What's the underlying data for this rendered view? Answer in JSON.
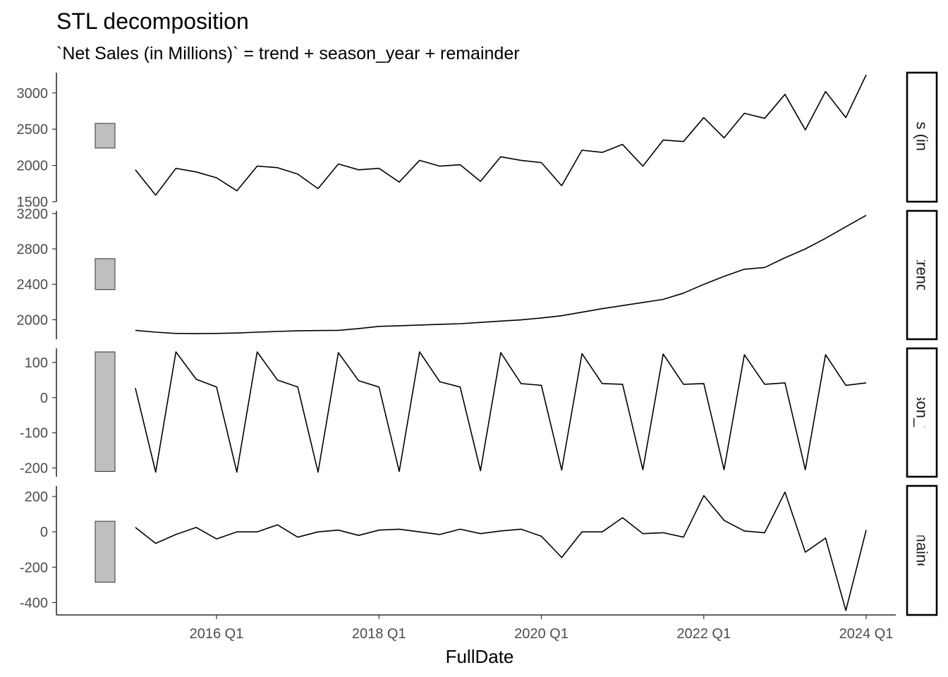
{
  "chart_data": {
    "type": "line",
    "title": "STL decomposition",
    "subtitle": "`Net Sales (in Millions)` = trend + season_year + remainder",
    "xlabel": "FullDate",
    "x_ticks": [
      "2016 Q1",
      "2018 Q1",
      "2020 Q1",
      "2022 Q1",
      "2024 Q1"
    ],
    "x": [
      "2015 Q1",
      "2015 Q2",
      "2015 Q3",
      "2015 Q4",
      "2016 Q1",
      "2016 Q2",
      "2016 Q3",
      "2016 Q4",
      "2017 Q1",
      "2017 Q2",
      "2017 Q3",
      "2017 Q4",
      "2018 Q1",
      "2018 Q2",
      "2018 Q3",
      "2018 Q4",
      "2019 Q1",
      "2019 Q2",
      "2019 Q3",
      "2019 Q4",
      "2020 Q1",
      "2020 Q2",
      "2020 Q3",
      "2020 Q4",
      "2021 Q1",
      "2021 Q2",
      "2021 Q3",
      "2021 Q4",
      "2022 Q1",
      "2022 Q2",
      "2022 Q3",
      "2022 Q4",
      "2023 Q1",
      "2023 Q2",
      "2023 Q3",
      "2023 Q4",
      "2024 Q1"
    ],
    "facets": [
      {
        "name": "Net Sales (in Millions)",
        "strip_label": "Net Sales (in Millions)",
        "ylim": [
          1500,
          3280
        ],
        "y_ticks": [
          1500,
          2000,
          2500,
          3000
        ],
        "scale_bar": [
          2240,
          2580
        ],
        "values": [
          1940,
          1590,
          1960,
          1910,
          1830,
          1650,
          1990,
          1970,
          1880,
          1680,
          2020,
          1940,
          1960,
          1770,
          2070,
          1990,
          2010,
          1780,
          2120,
          2070,
          2040,
          1720,
          2210,
          2180,
          2290,
          1990,
          2350,
          2330,
          2660,
          2380,
          2720,
          2650,
          2980,
          2490,
          3020,
          2660,
          3250
        ]
      },
      {
        "name": "trend",
        "strip_label": "trend",
        "ylim": [
          1780,
          3230
        ],
        "y_ticks": [
          2000,
          2400,
          2800,
          3200
        ],
        "scale_bar": [
          2340,
          2690
        ],
        "values": [
          1880,
          1860,
          1845,
          1843,
          1845,
          1850,
          1860,
          1868,
          1875,
          1878,
          1880,
          1900,
          1925,
          1932,
          1940,
          1948,
          1955,
          1970,
          1985,
          1998,
          2020,
          2045,
          2085,
          2125,
          2160,
          2195,
          2230,
          2300,
          2400,
          2490,
          2570,
          2590,
          2700,
          2800,
          2920,
          3050,
          3180
        ]
      },
      {
        "name": "season_year",
        "strip_label": "season_year",
        "ylim": [
          -225,
          140
        ],
        "y_ticks": [
          -200,
          -100,
          0,
          100
        ],
        "scale_bar": [
          -210,
          130
        ],
        "values": [
          27,
          -212,
          130,
          52,
          30,
          -212,
          130,
          50,
          30,
          -212,
          128,
          48,
          30,
          -210,
          130,
          45,
          30,
          -208,
          128,
          40,
          35,
          -206,
          125,
          40,
          38,
          -205,
          124,
          38,
          40,
          -205,
          122,
          38,
          42,
          -205,
          122,
          35,
          42
        ]
      },
      {
        "name": "remainder",
        "strip_label": "remainder",
        "ylim": [
          -470,
          260
        ],
        "y_ticks": [
          -400,
          -200,
          0,
          200
        ],
        "scale_bar": [
          -285,
          60
        ],
        "values": [
          25,
          -65,
          -15,
          25,
          -40,
          0,
          0,
          40,
          -30,
          0,
          10,
          -20,
          10,
          15,
          0,
          -15,
          15,
          -10,
          5,
          15,
          -25,
          -145,
          0,
          0,
          80,
          -10,
          -5,
          -30,
          205,
          65,
          5,
          -5,
          225,
          -115,
          -35,
          -445,
          10
        ]
      }
    ],
    "grid": false,
    "colors": {
      "line": "#000000",
      "scale_bar_fill": "#bfbfbf",
      "axis": "#000000",
      "tick_text": "#4d4d4d"
    }
  }
}
